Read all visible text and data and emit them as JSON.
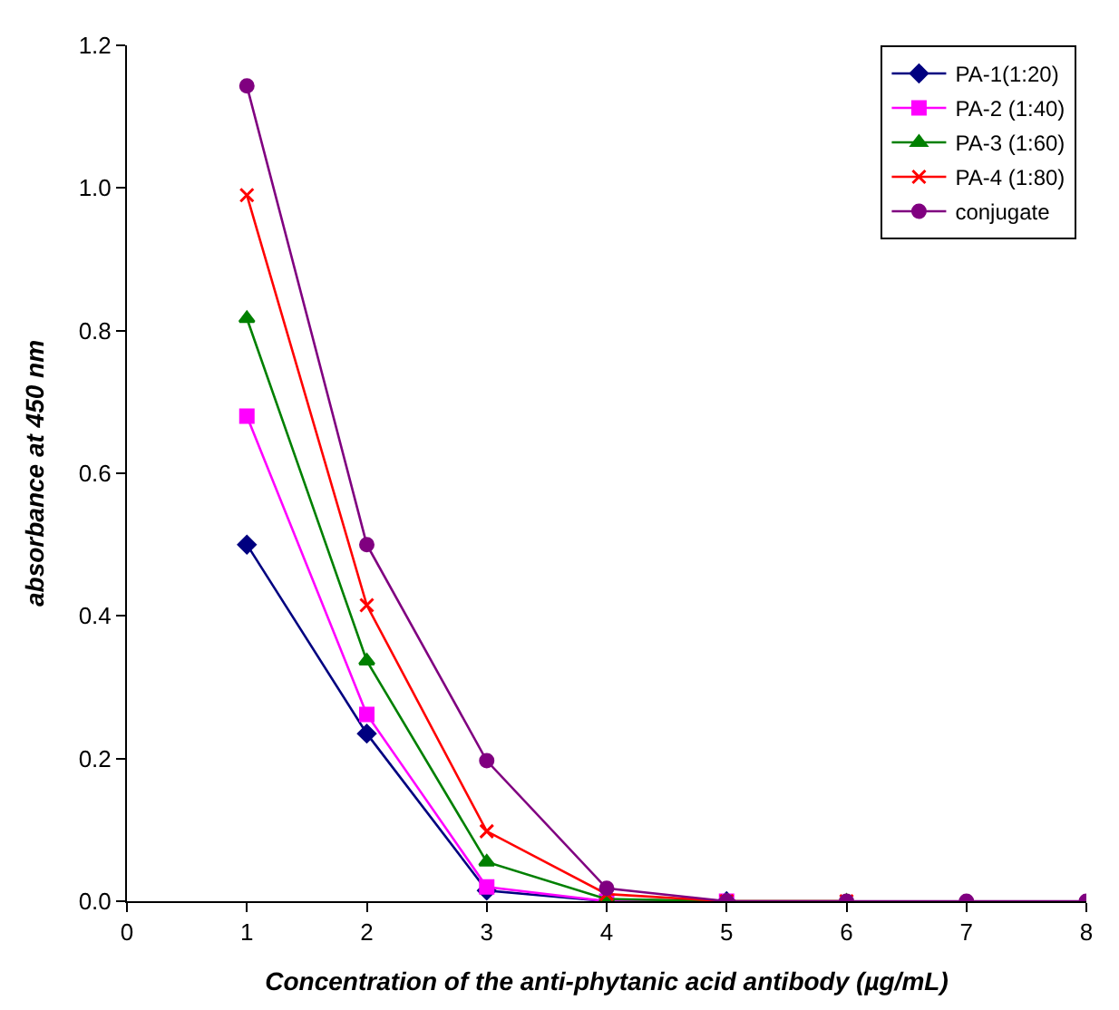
{
  "chart_data": {
    "type": "line",
    "xlabel": "Concentration of the anti-phytanic acid antibody (µg/mL)",
    "ylabel": "absorbance at 450 nm",
    "x": [
      1,
      2,
      3,
      4,
      5,
      6,
      7,
      8
    ],
    "series": [
      {
        "name": "PA-1(1:20)",
        "color": "#000080",
        "marker": "diamond",
        "values": [
          0.5,
          0.235,
          0.015,
          0,
          0,
          null,
          null,
          null
        ]
      },
      {
        "name": "PA-2 (1:40)",
        "color": "#ff00ff",
        "marker": "square",
        "values": [
          0.68,
          0.262,
          0.02,
          0,
          0,
          null,
          null,
          null
        ]
      },
      {
        "name": "PA-3 (1:60)",
        "color": "#008000",
        "marker": "triangle",
        "values": [
          0.817,
          0.337,
          0.055,
          0.003,
          0,
          0,
          null,
          null
        ]
      },
      {
        "name": "PA-4 (1:80)",
        "color": "#ff0000",
        "marker": "cross",
        "values": [
          0.99,
          0.415,
          0.098,
          0.01,
          0,
          0,
          null,
          null
        ]
      },
      {
        "name": "conjugate",
        "color": "#800080",
        "marker": "circle",
        "values": [
          1.143,
          0.5,
          0.197,
          0.018,
          0,
          0,
          0,
          0
        ]
      }
    ],
    "xlim": [
      0,
      8
    ],
    "xticks": [
      0,
      1,
      2,
      3,
      4,
      5,
      6,
      7,
      8
    ],
    "ylim": [
      0,
      1.2
    ],
    "yticks": [
      {
        "value": 0,
        "label": "0.0"
      },
      {
        "value": 0.2,
        "label": "0.2"
      },
      {
        "value": 0.4,
        "label": "0.4"
      },
      {
        "value": 0.6,
        "label": "0.6"
      },
      {
        "value": 0.8,
        "label": "0.8"
      },
      {
        "value": 1,
        "label": "1.0"
      },
      {
        "value": 1.2,
        "label": "1.2"
      }
    ],
    "legend": "top right",
    "line_style": "solid"
  }
}
